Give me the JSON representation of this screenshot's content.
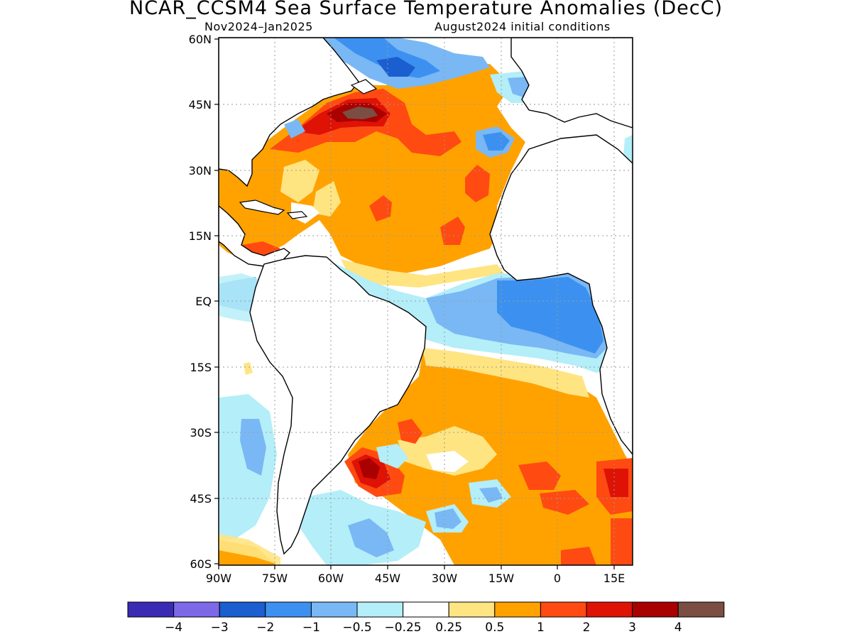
{
  "header": {
    "title": "NCAR_CCSM4 Sea Surface Temperature Anomalies (DecC)",
    "period": "Nov2024–Jan2025",
    "init": "August2024 initial conditions"
  },
  "map": {
    "lat_labels": [
      "60N",
      "45N",
      "30N",
      "15N",
      "EQ",
      "15S",
      "30S",
      "45S",
      "60S"
    ],
    "lon_labels": [
      "90W",
      "75W",
      "60W",
      "45W",
      "30W",
      "15W",
      "0",
      "15E"
    ],
    "lat_range": [
      -60,
      60
    ],
    "lon_range": [
      -90,
      17
    ]
  },
  "colorbar": {
    "colors": [
      "#3a2bb5",
      "#7d68e8",
      "#1a5ecf",
      "#3c91f0",
      "#79b8f5",
      "#b4eef8",
      "#ffffff",
      "#ffe482",
      "#ffa200",
      "#ff4a12",
      "#de1205",
      "#a90000",
      "#7a4e43"
    ],
    "labels": [
      "−4",
      "−3",
      "−2",
      "−1",
      "−0.5",
      "−0.25",
      "0.25",
      "0.5",
      "1",
      "2",
      "3",
      "4"
    ]
  }
}
